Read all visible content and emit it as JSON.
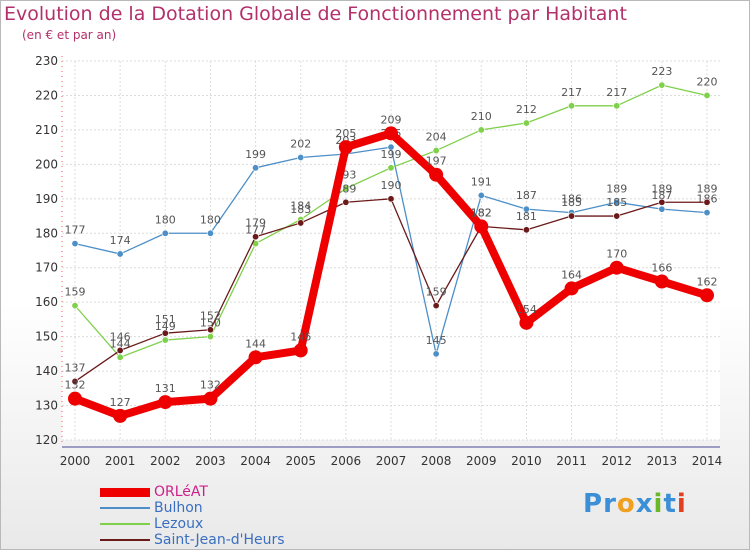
{
  "header": {
    "title": "Evolution de la Dotation Globale de Fonctionnement par Habitant",
    "subtitle": "(en € et par an)"
  },
  "logo": {
    "letters": [
      "P",
      "r",
      "o",
      "x",
      "i",
      "t",
      "i"
    ],
    "colors": [
      "#3a8fd6",
      "#3a8fd6",
      "#f0a020",
      "#3a8fd6",
      "#6ab82a",
      "#3a8fd6",
      "#e04020"
    ]
  },
  "chart_data": {
    "type": "line",
    "title": "Evolution de la Dotation Globale de Fonctionnement par Habitant",
    "subtitle": "(en € et par an)",
    "x": [
      "2000",
      "2001",
      "2002",
      "2003",
      "2004",
      "2005",
      "2006",
      "2007",
      "2008",
      "2009",
      "2010",
      "2011",
      "2012",
      "2013",
      "2014"
    ],
    "ylim": [
      120,
      230
    ],
    "yticks": [
      "120",
      "130",
      "140",
      "150",
      "160",
      "170",
      "180",
      "190",
      "200",
      "210",
      "220",
      "230"
    ],
    "grid": true,
    "legend": "bottom-left",
    "series": [
      {
        "name": "Bulhon",
        "color": "#4d8fc7",
        "values": [
          177,
          174,
          180,
          180,
          199,
          202,
          203,
          205,
          145,
          191,
          187,
          186,
          189,
          187,
          186
        ],
        "labels": [
          "177",
          "174",
          "180",
          "180",
          "199",
          "202",
          "203",
          "205",
          "145",
          "191",
          "187",
          "186",
          "189",
          "187",
          "186"
        ]
      },
      {
        "name": "Lezoux",
        "color": "#7fd04a",
        "values": [
          159,
          144,
          149,
          150,
          177,
          184,
          193,
          199,
          204,
          210,
          212,
          217,
          217,
          223,
          220
        ],
        "labels": [
          "159",
          "144",
          "149",
          "150",
          "177",
          "184",
          "193",
          "199",
          "204",
          "210",
          "212",
          "217",
          "217",
          "223",
          "220"
        ]
      },
      {
        "name": "Saint-Jean-d'Heurs",
        "color": "#6b1a1a",
        "values": [
          137,
          146,
          151,
          152,
          179,
          183,
          189,
          190,
          159,
          182,
          181,
          185,
          185,
          189,
          189
        ],
        "labels": [
          "137",
          "146",
          "151",
          "152",
          "179",
          "183",
          "189",
          "190",
          "159",
          "182",
          "181",
          "185",
          "185",
          "189",
          "189"
        ]
      },
      {
        "name": "ORLéAT",
        "color": "#ee0000",
        "values": [
          132,
          127,
          131,
          132,
          144,
          146,
          205,
          209,
          197,
          182,
          154,
          164,
          170,
          166,
          162
        ],
        "labels": [
          "132",
          "127",
          "131",
          "132",
          "144",
          "146",
          "205",
          "209",
          "197",
          "182",
          "154",
          "164",
          "170",
          "166",
          "162"
        ]
      }
    ],
    "legend_entries": [
      {
        "name": "ORLéAT",
        "color": "#ee0000",
        "text_color": "#cc1f8a"
      },
      {
        "name": "Bulhon",
        "color": "#4d8fc7",
        "text_color": "#3a6fc0"
      },
      {
        "name": "Lezoux",
        "color": "#7fd04a",
        "text_color": "#3a6fc0"
      },
      {
        "name": "Saint-Jean-d'Heurs",
        "color": "#6b1a1a",
        "text_color": "#3a6fc0"
      }
    ]
  }
}
